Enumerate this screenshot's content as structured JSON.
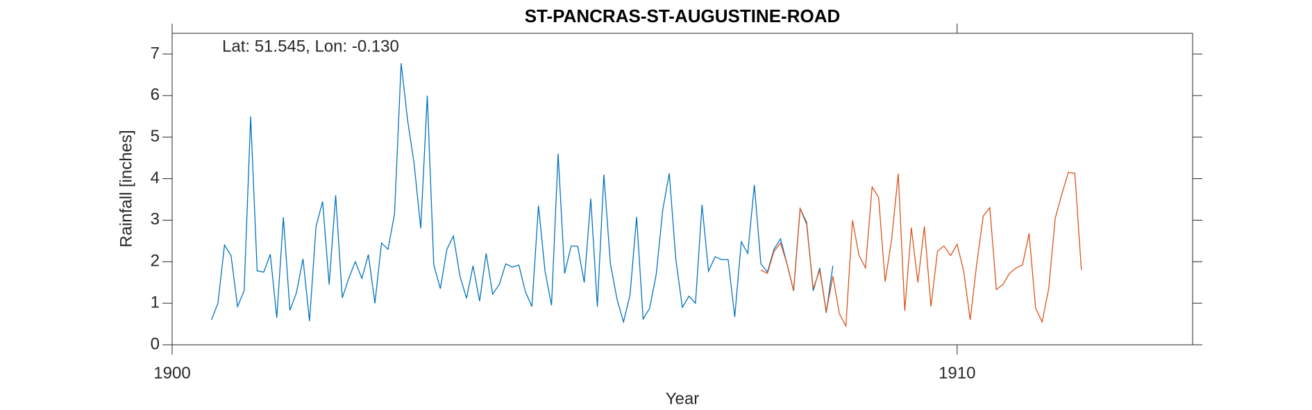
{
  "chart_data": {
    "type": "line",
    "title": "ST-PANCRAS-ST-AUGUSTINE-ROAD",
    "annotation": "Lat: 51.545, Lon: -0.130",
    "xlabel": "Year",
    "ylabel": "Rainfall [inches]",
    "xlim": [
      1900,
      1913
    ],
    "xticks": [
      1900,
      1910
    ],
    "ylim": [
      0,
      7.5
    ],
    "yticks": [
      0,
      1,
      2,
      3,
      4,
      5,
      6,
      7
    ],
    "series": [
      {
        "color": "#0072BD",
        "x": [
          1900.5,
          1900.583,
          1900.667,
          1900.75,
          1900.833,
          1900.917,
          1901,
          1901.083,
          1901.167,
          1901.25,
          1901.333,
          1901.417,
          1901.5,
          1901.583,
          1901.667,
          1901.75,
          1901.833,
          1901.917,
          1902,
          1902.083,
          1902.167,
          1902.25,
          1902.333,
          1902.417,
          1902.5,
          1902.583,
          1902.667,
          1902.75,
          1902.833,
          1902.917,
          1903,
          1903.083,
          1903.167,
          1903.25,
          1903.333,
          1903.417,
          1903.5,
          1903.583,
          1903.667,
          1903.75,
          1903.833,
          1903.917,
          1904,
          1904.083,
          1904.167,
          1904.25,
          1904.333,
          1904.417,
          1904.5,
          1904.583,
          1904.667,
          1904.75,
          1904.833,
          1904.917,
          1905,
          1905.083,
          1905.167,
          1905.25,
          1905.333,
          1905.417,
          1905.5,
          1905.583,
          1905.667,
          1905.75,
          1905.833,
          1905.917,
          1906,
          1906.083,
          1906.167,
          1906.25,
          1906.333,
          1906.417,
          1906.5,
          1906.583,
          1906.667,
          1906.75,
          1906.833,
          1906.917,
          1907,
          1907.083,
          1907.167,
          1907.25,
          1907.333,
          1907.417,
          1907.5,
          1907.583,
          1907.667,
          1907.75,
          1907.833,
          1907.917,
          1908,
          1908.083,
          1908.167,
          1908.25,
          1908.333,
          1908.417
        ],
        "values": [
          0.6,
          1.0,
          2.4,
          2.15,
          0.92,
          1.3,
          5.5,
          1.78,
          1.75,
          2.18,
          0.65,
          3.07,
          0.83,
          1.25,
          2.07,
          0.57,
          2.85,
          3.45,
          1.45,
          3.6,
          1.13,
          1.6,
          2.0,
          1.6,
          2.17,
          1.0,
          2.45,
          2.3,
          3.15,
          6.78,
          5.4,
          4.35,
          2.8,
          6.0,
          1.92,
          1.35,
          2.3,
          2.62,
          1.65,
          1.12,
          1.9,
          1.05,
          2.2,
          1.22,
          1.45,
          1.95,
          1.87,
          1.92,
          1.28,
          0.92,
          3.35,
          1.78,
          0.95,
          4.6,
          1.72,
          2.38,
          2.37,
          1.5,
          3.52,
          0.92,
          4.1,
          1.95,
          1.1,
          0.55,
          1.2,
          3.08,
          0.62,
          0.88,
          1.7,
          3.25,
          4.13,
          2.05,
          0.9,
          1.17,
          1.0,
          3.37,
          1.77,
          2.12,
          2.05,
          2.05,
          0.67,
          2.48,
          2.2,
          3.85,
          1.95,
          1.75,
          2.3,
          2.55,
          1.95,
          1.3,
          3.28,
          2.95,
          1.3,
          1.85,
          0.77,
          1.9
        ]
      },
      {
        "color": "#D95319",
        "x": [
          1907.5,
          1907.583,
          1907.667,
          1907.75,
          1907.833,
          1907.917,
          1908,
          1908.083,
          1908.167,
          1908.25,
          1908.333,
          1908.417,
          1908.5,
          1908.583,
          1908.667,
          1908.75,
          1908.833,
          1908.917,
          1909,
          1909.083,
          1909.167,
          1909.25,
          1909.333,
          1909.417,
          1909.5,
          1909.583,
          1909.667,
          1909.75,
          1909.833,
          1909.917,
          1910,
          1910.083,
          1910.167,
          1910.25,
          1910.333,
          1910.417,
          1910.5,
          1910.583,
          1910.667,
          1910.75,
          1910.833,
          1910.917,
          1911,
          1911.083,
          1911.167,
          1911.25,
          1911.333,
          1911.417,
          1911.5,
          1911.583
        ],
        "values": [
          1.8,
          1.72,
          2.25,
          2.45,
          1.95,
          1.3,
          3.28,
          2.9,
          1.35,
          1.8,
          0.8,
          1.65,
          0.75,
          0.45,
          3.0,
          2.15,
          1.85,
          3.8,
          3.55,
          1.52,
          2.55,
          4.12,
          0.82,
          2.82,
          1.5,
          2.85,
          0.92,
          2.25,
          2.38,
          2.15,
          2.42,
          1.78,
          0.6,
          1.95,
          3.1,
          3.3,
          1.33,
          1.45,
          1.72,
          1.85,
          1.92,
          2.68,
          0.88,
          0.55,
          1.35,
          3.05,
          3.62,
          4.15,
          4.13,
          1.8
        ]
      }
    ]
  }
}
